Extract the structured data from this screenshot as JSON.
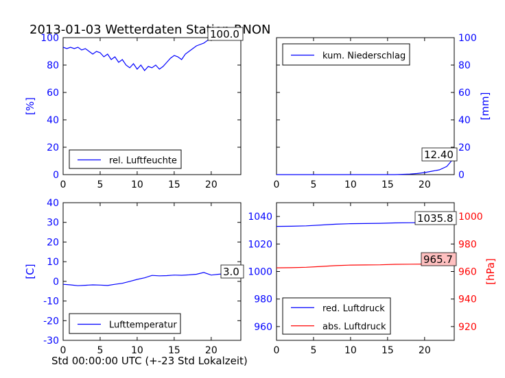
{
  "figure": {
    "title": "2013-01-03 Wetterdaten Station RNON",
    "xlabel": "Std 00:00:00 UTC (+-23 Std Lokalzeit)"
  },
  "colors": {
    "primary": "#0000ff",
    "secondary": "#ff0000",
    "annotation_bg": "#ffc0c0"
  },
  "chart_data": [
    {
      "id": "humidity",
      "type": "line",
      "title": "",
      "xlabel": "",
      "ylabel": "[%]",
      "xlim": [
        0,
        24
      ],
      "ylim": [
        0,
        100
      ],
      "xticks": [
        0,
        5,
        10,
        15,
        20
      ],
      "yticks": [
        0,
        20,
        40,
        60,
        80,
        100
      ],
      "grid": false,
      "legend_position": "lower-left",
      "annotation": "100.0",
      "series": [
        {
          "name": "rel. Luftfeuchte",
          "color": "#0000ff",
          "x": [
            0,
            0.5,
            1,
            1.5,
            2,
            2.5,
            3,
            3.5,
            4,
            4.5,
            5,
            5.5,
            6,
            6.5,
            7,
            7.5,
            8,
            8.5,
            9,
            9.5,
            10,
            10.5,
            11,
            11.5,
            12,
            12.5,
            13,
            13.5,
            14,
            14.5,
            15,
            15.5,
            16,
            16.5,
            17,
            17.5,
            18,
            18.5,
            19,
            19.5,
            20,
            20.5,
            21,
            21.5,
            22,
            22.5,
            23,
            23.5,
            24
          ],
          "y": [
            93,
            92,
            93,
            92,
            93,
            91,
            92,
            90,
            88,
            90,
            89,
            86,
            88,
            84,
            86,
            82,
            84,
            80,
            78,
            81,
            77,
            80,
            76,
            79,
            78,
            80,
            77,
            79,
            82,
            85,
            87,
            86,
            84,
            88,
            90,
            92,
            94,
            95,
            96,
            98,
            99,
            99,
            100,
            100,
            100,
            100,
            100,
            100,
            100
          ]
        }
      ]
    },
    {
      "id": "precip",
      "type": "line",
      "title": "",
      "xlabel": "",
      "ylabel": "[mm]",
      "xlim": [
        0,
        24
      ],
      "ylim": [
        0,
        100
      ],
      "xticks": [
        0,
        5,
        10,
        15,
        20
      ],
      "yticks": [
        0,
        20,
        40,
        60,
        80,
        100
      ],
      "grid": false,
      "legend_position": "upper-left",
      "annotation": "12.40",
      "series": [
        {
          "name": "kum. Niederschlag",
          "color": "#0000ff",
          "x": [
            0,
            2,
            4,
            6,
            8,
            10,
            12,
            14,
            16,
            17,
            18,
            19,
            20,
            21,
            22,
            23,
            24
          ],
          "y": [
            0,
            0,
            0,
            0,
            0,
            0,
            0,
            0,
            0,
            0.2,
            0.4,
            0.8,
            1.5,
            2.5,
            3.5,
            6,
            12.4
          ]
        }
      ]
    },
    {
      "id": "temperature",
      "type": "line",
      "title": "",
      "xlabel": "",
      "ylabel": "[C]",
      "xlim": [
        0,
        24
      ],
      "ylim": [
        -30,
        40
      ],
      "xticks": [
        0,
        5,
        10,
        15,
        20
      ],
      "yticks": [
        -30,
        -20,
        -10,
        0,
        10,
        20,
        30,
        40
      ],
      "grid": false,
      "legend_position": "lower-left",
      "annotation": "3.0",
      "series": [
        {
          "name": "Lufttemperatur",
          "color": "#0000ff",
          "x": [
            0,
            1,
            2,
            3,
            4,
            5,
            6,
            7,
            8,
            9,
            10,
            11,
            12,
            13,
            14,
            15,
            16,
            17,
            18,
            19,
            20,
            21,
            22,
            23,
            24
          ],
          "y": [
            -1.5,
            -1.8,
            -2.2,
            -2,
            -1.8,
            -1.9,
            -2.1,
            -1.5,
            -1,
            0,
            1,
            1.8,
            3,
            2.8,
            2.9,
            3.2,
            3.1,
            3.3,
            3.6,
            4.5,
            3.2,
            3.6,
            3.9,
            3.4,
            3.0
          ]
        }
      ]
    },
    {
      "id": "pressure",
      "type": "line",
      "title": "",
      "xlabel": "",
      "ylabel": "",
      "ylabel_right": "[hPa]",
      "xlim": [
        0,
        24
      ],
      "ylim": [
        950,
        1050
      ],
      "ylim_right": [
        910,
        1010
      ],
      "xticks": [
        0,
        5,
        10,
        15,
        20
      ],
      "yticks": [
        960,
        980,
        1000,
        1020,
        1040
      ],
      "yticks_right": [
        920,
        940,
        960,
        980,
        1000
      ],
      "grid": false,
      "legend_position": "lower-left",
      "annotations": [
        "1035.8",
        "965.7"
      ],
      "series": [
        {
          "name": "red. Luftdruck",
          "color": "#0000ff",
          "axis": "left",
          "x": [
            0,
            2,
            4,
            6,
            8,
            10,
            12,
            14,
            16,
            18,
            20,
            22,
            24
          ],
          "y": [
            1032.8,
            1032.9,
            1033.2,
            1033.8,
            1034.4,
            1034.8,
            1034.9,
            1035,
            1035.3,
            1035.4,
            1035.5,
            1035.6,
            1035.8
          ]
        },
        {
          "name": "abs. Luftdruck",
          "color": "#ff0000",
          "axis": "right",
          "x": [
            0,
            2,
            4,
            6,
            8,
            10,
            12,
            14,
            16,
            18,
            20,
            22,
            24
          ],
          "y": [
            962.7,
            962.8,
            963.1,
            963.7,
            964.3,
            964.7,
            964.8,
            964.9,
            965.2,
            965.3,
            965.4,
            965.5,
            965.7
          ]
        }
      ]
    }
  ]
}
